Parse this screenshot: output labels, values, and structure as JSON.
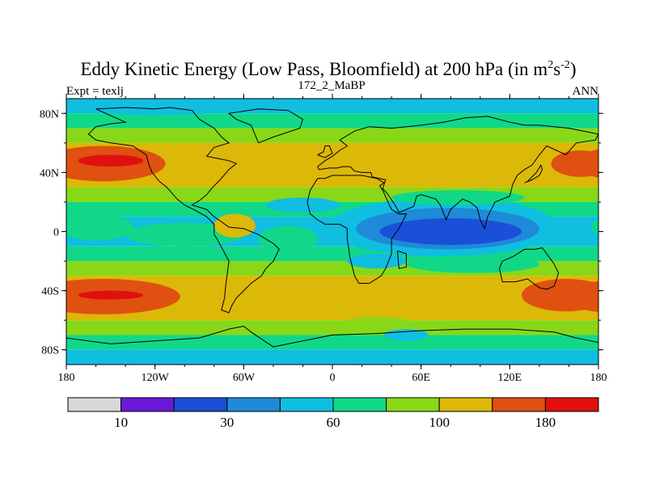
{
  "chart_data": {
    "type": "heatmap",
    "title": "Eddy Kinetic Energy (Low Pass, Bloomfield) at 200 hPa (in m",
    "title_units_sup1": "2",
    "title_units_mid": "s",
    "title_units_sup2": "-2",
    "title_close": ")",
    "subtitle_left": "Expt = texlj",
    "subtitle_center": "172_2_MaBP",
    "subtitle_right": "ANN",
    "xlim": [
      -180,
      180
    ],
    "ylim": [
      -90,
      90
    ],
    "x_ticks": [
      {
        "value": -180,
        "label": "180"
      },
      {
        "value": -120,
        "label": "120W"
      },
      {
        "value": -60,
        "label": "60W"
      },
      {
        "value": 0,
        "label": "0"
      },
      {
        "value": 60,
        "label": "60E"
      },
      {
        "value": 120,
        "label": "120E"
      },
      {
        "value": 180,
        "label": "180"
      }
    ],
    "y_ticks": [
      {
        "value": 80,
        "label": "80N"
      },
      {
        "value": 40,
        "label": "40N"
      },
      {
        "value": 0,
        "label": "0"
      },
      {
        "value": -40,
        "label": "40S"
      },
      {
        "value": -80,
        "label": "80S"
      }
    ],
    "colorbar": {
      "colors": [
        "#d8d8d8",
        "#6a18d8",
        "#1a50d8",
        "#1e8ad8",
        "#10bee0",
        "#10d888",
        "#88d818",
        "#dcb808",
        "#e05010",
        "#e01010"
      ],
      "boundaries": [
        10,
        20,
        30,
        45,
        60,
        80,
        100,
        140,
        180
      ],
      "labels": [
        {
          "after_box": 1,
          "label": "10"
        },
        {
          "after_box": 3,
          "label": "30"
        },
        {
          "after_box": 5,
          "label": "60"
        },
        {
          "after_box": 7,
          "label": "100"
        },
        {
          "after_box": 9,
          "label": "180"
        }
      ]
    },
    "zonal_bands": [
      {
        "lat_from": 90,
        "lat_to": 80,
        "level": 4
      },
      {
        "lat_from": 80,
        "lat_to": 70,
        "level": 5
      },
      {
        "lat_from": 70,
        "lat_to": 60,
        "level": 6
      },
      {
        "lat_from": 60,
        "lat_to": 30,
        "level": 7
      },
      {
        "lat_from": 30,
        "lat_to": 20,
        "level": 6
      },
      {
        "lat_from": 20,
        "lat_to": 10,
        "level": 5
      },
      {
        "lat_from": 10,
        "lat_to": -10,
        "level": 4
      },
      {
        "lat_from": -10,
        "lat_to": -20,
        "level": 5
      },
      {
        "lat_from": -20,
        "lat_to": -30,
        "level": 6
      },
      {
        "lat_from": -30,
        "lat_to": -60,
        "level": 7
      },
      {
        "lat_from": -60,
        "lat_to": -70,
        "level": 6
      },
      {
        "lat_from": -70,
        "lat_to": -80,
        "level": 5
      },
      {
        "lat_from": -80,
        "lat_to": -90,
        "level": 4
      }
    ],
    "features": [
      {
        "name": "north-pacific-jet",
        "lon": -155,
        "lat": 46,
        "rlon": 42,
        "rlat": 12,
        "level": 8
      },
      {
        "name": "north-pacific-jet-core",
        "lon": -150,
        "lat": 48,
        "rlon": 22,
        "rlat": 4,
        "level": 9
      },
      {
        "name": "north-pacific-jet-east",
        "lon": 168,
        "lat": 46,
        "rlon": 20,
        "rlat": 9,
        "level": 8
      },
      {
        "name": "south-pacific-jet",
        "lon": -155,
        "lat": -44,
        "rlon": 52,
        "rlat": 12,
        "level": 8
      },
      {
        "name": "south-pacific-jet-core",
        "lon": -150,
        "lat": -43,
        "rlon": 22,
        "rlat": 3,
        "level": 9
      },
      {
        "name": "south-pacific-jet-west",
        "lon": 158,
        "lat": -43,
        "rlon": 30,
        "rlat": 11,
        "level": 8
      },
      {
        "name": "tropical-atlantic-low",
        "lon": -20,
        "lat": 18,
        "rlon": 25,
        "rlat": 5,
        "level": 4
      },
      {
        "name": "tropical-pacific-green",
        "lon": -160,
        "lat": 3,
        "rlon": 25,
        "rlat": 9,
        "level": 5
      },
      {
        "name": "tropical-green-band",
        "lon": -100,
        "lat": -2,
        "rlon": 40,
        "rlat": 8,
        "level": 5
      },
      {
        "name": "tropical-america-yellow",
        "lon": -66,
        "lat": 4,
        "rlon": 14,
        "rlat": 8,
        "level": 7
      },
      {
        "name": "west-africa-green",
        "lon": -30,
        "lat": -5,
        "rlon": 20,
        "rlat": 9,
        "level": 5
      },
      {
        "name": "indian-ocean-cyan",
        "lon": 75,
        "lat": 3,
        "rlon": 78,
        "rlat": 20,
        "level": 4
      },
      {
        "name": "indian-ocean-blue",
        "lon": 78,
        "lat": 2,
        "rlon": 62,
        "rlat": 14,
        "level": 3
      },
      {
        "name": "indian-ocean-deep",
        "lon": 80,
        "lat": 0,
        "rlon": 48,
        "rlat": 9,
        "level": 2
      },
      {
        "name": "asia-green",
        "lon": 85,
        "lat": 23,
        "rlon": 45,
        "rlat": 5,
        "level": 5
      },
      {
        "name": "south-indian-green",
        "lon": 95,
        "lat": -22,
        "rlon": 45,
        "rlat": 6,
        "level": 5
      },
      {
        "name": "southern-africa-cyan",
        "lon": 30,
        "lat": -20,
        "rlon": 20,
        "rlat": 5,
        "level": 4
      },
      {
        "name": "antarctic-green",
        "lon": 30,
        "lat": -64,
        "rlon": 30,
        "rlat": 6,
        "level": 6
      },
      {
        "name": "antarctic-cyan",
        "lon": 50,
        "lat": -70,
        "rlon": 15,
        "rlat": 4,
        "level": 4
      },
      {
        "name": "arctic-cyan",
        "lon": -120,
        "lat": 85,
        "rlon": 60,
        "rlat": 6,
        "level": 4
      },
      {
        "name": "arctic-green",
        "lon": 40,
        "lat": 74,
        "rlon": 60,
        "rlat": 4,
        "level": 5
      }
    ],
    "coastlines": [
      [
        [
          -160,
          83
        ],
        [
          -140,
          84
        ],
        [
          -120,
          83
        ],
        [
          -110,
          84
        ],
        [
          -95,
          82
        ],
        [
          -90,
          76
        ],
        [
          -80,
          70
        ],
        [
          -75,
          64
        ],
        [
          -70,
          60
        ],
        [
          -80,
          57
        ],
        [
          -85,
          51
        ],
        [
          -70,
          48
        ],
        [
          -65,
          46
        ],
        [
          -70,
          42
        ],
        [
          -76,
          35
        ],
        [
          -81,
          30
        ],
        [
          -85,
          25
        ],
        [
          -90,
          21
        ],
        [
          -95,
          18
        ],
        [
          -85,
          15
        ],
        [
          -80,
          10
        ],
        [
          -77,
          8
        ],
        [
          -70,
          3
        ],
        [
          -60,
          2
        ],
        [
          -50,
          -2
        ],
        [
          -40,
          -8
        ],
        [
          -36,
          -12
        ],
        [
          -40,
          -20
        ],
        [
          -45,
          -25
        ],
        [
          -48,
          -30
        ],
        [
          -55,
          -35
        ],
        [
          -60,
          -40
        ],
        [
          -65,
          -45
        ],
        [
          -68,
          -50
        ],
        [
          -70,
          -55
        ],
        [
          -75,
          -53
        ],
        [
          -73,
          -45
        ],
        [
          -72,
          -35
        ],
        [
          -70,
          -20
        ],
        [
          -78,
          -5
        ],
        [
          -80,
          -2
        ],
        [
          -80,
          5
        ],
        [
          -85,
          10
        ],
        [
          -92,
          14
        ],
        [
          -100,
          18
        ],
        [
          -105,
          22
        ],
        [
          -112,
          30
        ],
        [
          -117,
          34
        ],
        [
          -122,
          40
        ],
        [
          -124,
          45
        ],
        [
          -126,
          52
        ],
        [
          -135,
          58
        ],
        [
          -150,
          60
        ],
        [
          -160,
          62
        ],
        [
          -165,
          66
        ],
        [
          -160,
          71
        ],
        [
          -150,
          73
        ],
        [
          -140,
          74
        ],
        [
          -160,
          83
        ]
      ],
      [
        [
          -10,
          36
        ],
        [
          -5,
          36
        ],
        [
          0,
          38
        ],
        [
          10,
          38
        ],
        [
          20,
          38
        ],
        [
          30,
          36
        ],
        [
          35,
          33
        ],
        [
          32,
          31
        ],
        [
          34,
          28
        ],
        [
          40,
          15
        ],
        [
          45,
          12
        ],
        [
          50,
          12
        ],
        [
          45,
          2
        ],
        [
          40,
          -5
        ],
        [
          40,
          -15
        ],
        [
          36,
          -25
        ],
        [
          33,
          -30
        ],
        [
          25,
          -35
        ],
        [
          18,
          -35
        ],
        [
          15,
          -30
        ],
        [
          12,
          -18
        ],
        [
          10,
          -5
        ],
        [
          10,
          2
        ],
        [
          5,
          5
        ],
        [
          -5,
          5
        ],
        [
          -10,
          8
        ],
        [
          -15,
          12
        ],
        [
          -17,
          20
        ],
        [
          -15,
          28
        ],
        [
          -10,
          36
        ]
      ],
      [
        [
          -10,
          44
        ],
        [
          -5,
          48
        ],
        [
          0,
          51
        ],
        [
          5,
          55
        ],
        [
          10,
          58
        ],
        [
          5,
          62
        ],
        [
          15,
          68
        ],
        [
          25,
          71
        ],
        [
          40,
          70
        ],
        [
          60,
          72
        ],
        [
          75,
          74
        ],
        [
          90,
          77
        ],
        [
          105,
          78
        ],
        [
          120,
          74
        ],
        [
          130,
          72
        ],
        [
          140,
          72
        ],
        [
          160,
          70
        ],
        [
          170,
          68
        ],
        [
          180,
          66
        ],
        [
          178,
          62
        ],
        [
          165,
          60
        ],
        [
          158,
          52
        ],
        [
          145,
          58
        ],
        [
          140,
          52
        ],
        [
          135,
          45
        ],
        [
          130,
          42
        ],
        [
          125,
          38
        ],
        [
          122,
          32
        ],
        [
          120,
          24
        ],
        [
          110,
          20
        ],
        [
          108,
          16
        ],
        [
          105,
          10
        ],
        [
          103,
          2
        ],
        [
          100,
          8
        ],
        [
          98,
          16
        ],
        [
          93,
          20
        ],
        [
          88,
          22
        ],
        [
          80,
          15
        ],
        [
          77,
          8
        ],
        [
          73,
          18
        ],
        [
          70,
          22
        ],
        [
          60,
          25
        ],
        [
          57,
          24
        ],
        [
          55,
          17
        ],
        [
          45,
          13
        ],
        [
          43,
          17
        ],
        [
          37,
          26
        ],
        [
          34,
          29
        ],
        [
          36,
          35
        ],
        [
          27,
          37
        ],
        [
          26,
          40
        ],
        [
          20,
          40
        ],
        [
          15,
          41
        ],
        [
          12,
          44
        ],
        [
          7,
          44
        ],
        [
          3,
          43
        ],
        [
          -2,
          43
        ],
        [
          -9,
          42
        ],
        [
          -10,
          44
        ]
      ],
      [
        [
          115,
          -20
        ],
        [
          122,
          -17
        ],
        [
          130,
          -12
        ],
        [
          137,
          -12
        ],
        [
          142,
          -11
        ],
        [
          145,
          -15
        ],
        [
          150,
          -22
        ],
        [
          153,
          -28
        ],
        [
          150,
          -37
        ],
        [
          145,
          -39
        ],
        [
          140,
          -38
        ],
        [
          132,
          -32
        ],
        [
          124,
          -34
        ],
        [
          115,
          -34
        ],
        [
          113,
          -25
        ],
        [
          115,
          -20
        ]
      ],
      [
        [
          -50,
          60
        ],
        [
          -40,
          64
        ],
        [
          -22,
          70
        ],
        [
          -20,
          76
        ],
        [
          -30,
          82
        ],
        [
          -50,
          83
        ],
        [
          -70,
          80
        ],
        [
          -65,
          76
        ],
        [
          -55,
          72
        ],
        [
          -50,
          60
        ]
      ],
      [
        [
          -180,
          -72
        ],
        [
          -150,
          -76
        ],
        [
          -120,
          -74
        ],
        [
          -90,
          -72
        ],
        [
          -70,
          -66
        ],
        [
          -60,
          -64
        ],
        [
          -55,
          -68
        ],
        [
          -40,
          -78
        ],
        [
          0,
          -70
        ],
        [
          30,
          -69
        ],
        [
          60,
          -67
        ],
        [
          90,
          -66
        ],
        [
          120,
          -66
        ],
        [
          150,
          -68
        ],
        [
          165,
          -72
        ],
        [
          180,
          -75
        ]
      ],
      [
        [
          -10,
          52
        ],
        [
          -6,
          54
        ],
        [
          -5,
          58
        ],
        [
          -2,
          58
        ],
        [
          0,
          53
        ],
        [
          -5,
          50
        ],
        [
          -10,
          52
        ]
      ],
      [
        [
          130,
          33
        ],
        [
          135,
          35
        ],
        [
          140,
          38
        ],
        [
          142,
          42
        ],
        [
          141,
          45
        ],
        [
          138,
          40
        ],
        [
          132,
          34
        ],
        [
          130,
          33
        ]
      ],
      [
        [
          44,
          -13
        ],
        [
          50,
          -15
        ],
        [
          50,
          -24
        ],
        [
          45,
          -25
        ],
        [
          44,
          -13
        ]
      ]
    ]
  }
}
